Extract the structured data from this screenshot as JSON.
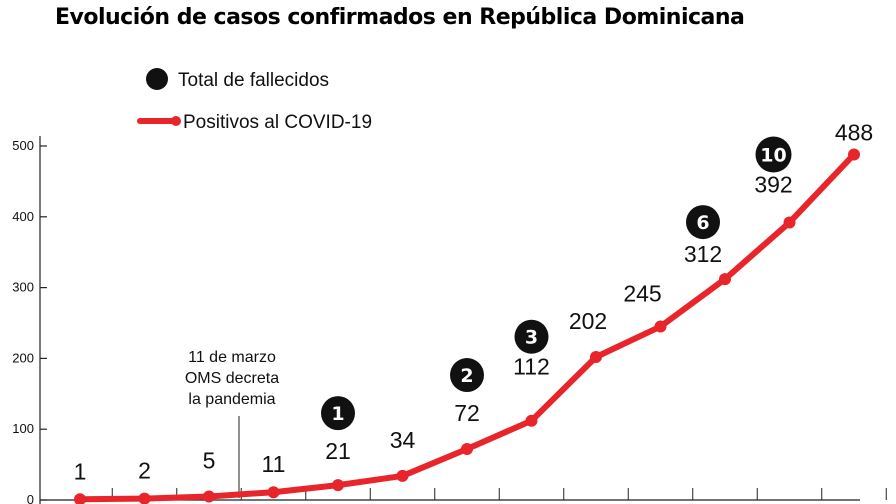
{
  "chart_data": {
    "type": "line",
    "title": "Evolución de casos confirmados en República Dominicana",
    "legend": {
      "placement": "top-left",
      "entries": [
        {
          "name": "Total de fallecidos",
          "marker": "black-circle"
        },
        {
          "name": "Positivos al COVID-19",
          "marker": "red-line"
        }
      ]
    },
    "ylim": [
      0,
      500
    ],
    "yticks": [
      "0",
      "100",
      "200",
      "300",
      "400",
      "500"
    ],
    "series": [
      {
        "name": "Positivos al COVID-19",
        "color": "#e8252a",
        "values": [
          1,
          2,
          5,
          11,
          21,
          34,
          72,
          112,
          202,
          245,
          312,
          392,
          488
        ],
        "labels": [
          "1",
          "2",
          "5",
          "11",
          "21",
          "34",
          "72",
          "112",
          "202",
          "245",
          "312",
          "392",
          "488"
        ]
      }
    ],
    "deaths": [
      {
        "index": 4,
        "value": "1"
      },
      {
        "index": 6,
        "value": "2"
      },
      {
        "index": 7,
        "value": "3"
      },
      {
        "index": 10,
        "value": "6"
      },
      {
        "index": 11,
        "value": "10"
      }
    ],
    "annotation": {
      "lines": [
        "11 de marzo",
        "OMS decreta",
        "la pandemia"
      ]
    },
    "colors": {
      "line": "#e8252a",
      "death_marker": "#111111",
      "axis": "#222222"
    }
  }
}
